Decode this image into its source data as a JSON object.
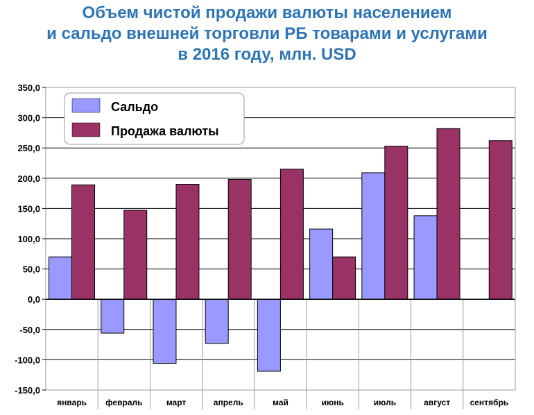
{
  "chart_data": {
    "type": "bar",
    "title_lines": [
      "Объем чистой продажи валюты населением",
      "и сальдо внешней торговли РБ товарами и услугами",
      "в 2016 году, млн. USD"
    ],
    "categories": [
      "январь",
      "февраль",
      "март",
      "апрель",
      "май",
      "июнь",
      "июль",
      "август",
      "сентябрь"
    ],
    "series": [
      {
        "name": "Сальдо",
        "color": "#9999FF",
        "values": [
          70,
          -56,
          -106,
          -73,
          -119,
          116,
          209,
          138,
          null
        ]
      },
      {
        "name": "Продажа валюты",
        "color": "#993366",
        "values": [
          189,
          147,
          190,
          198,
          215,
          70,
          253,
          282,
          262
        ]
      }
    ],
    "ylim": [
      -150,
      350
    ],
    "yticks": [
      350,
      300,
      250,
      200,
      150,
      100,
      50,
      0,
      -50,
      -100,
      -150
    ],
    "ytick_labels": [
      "350,0",
      "300,0",
      "250,0",
      "200,0",
      "150,0",
      "100,0",
      "50,0",
      "0,0",
      "-50,0",
      "-100,0",
      "-150,0"
    ],
    "grid": true,
    "legend_position": "top-left"
  }
}
